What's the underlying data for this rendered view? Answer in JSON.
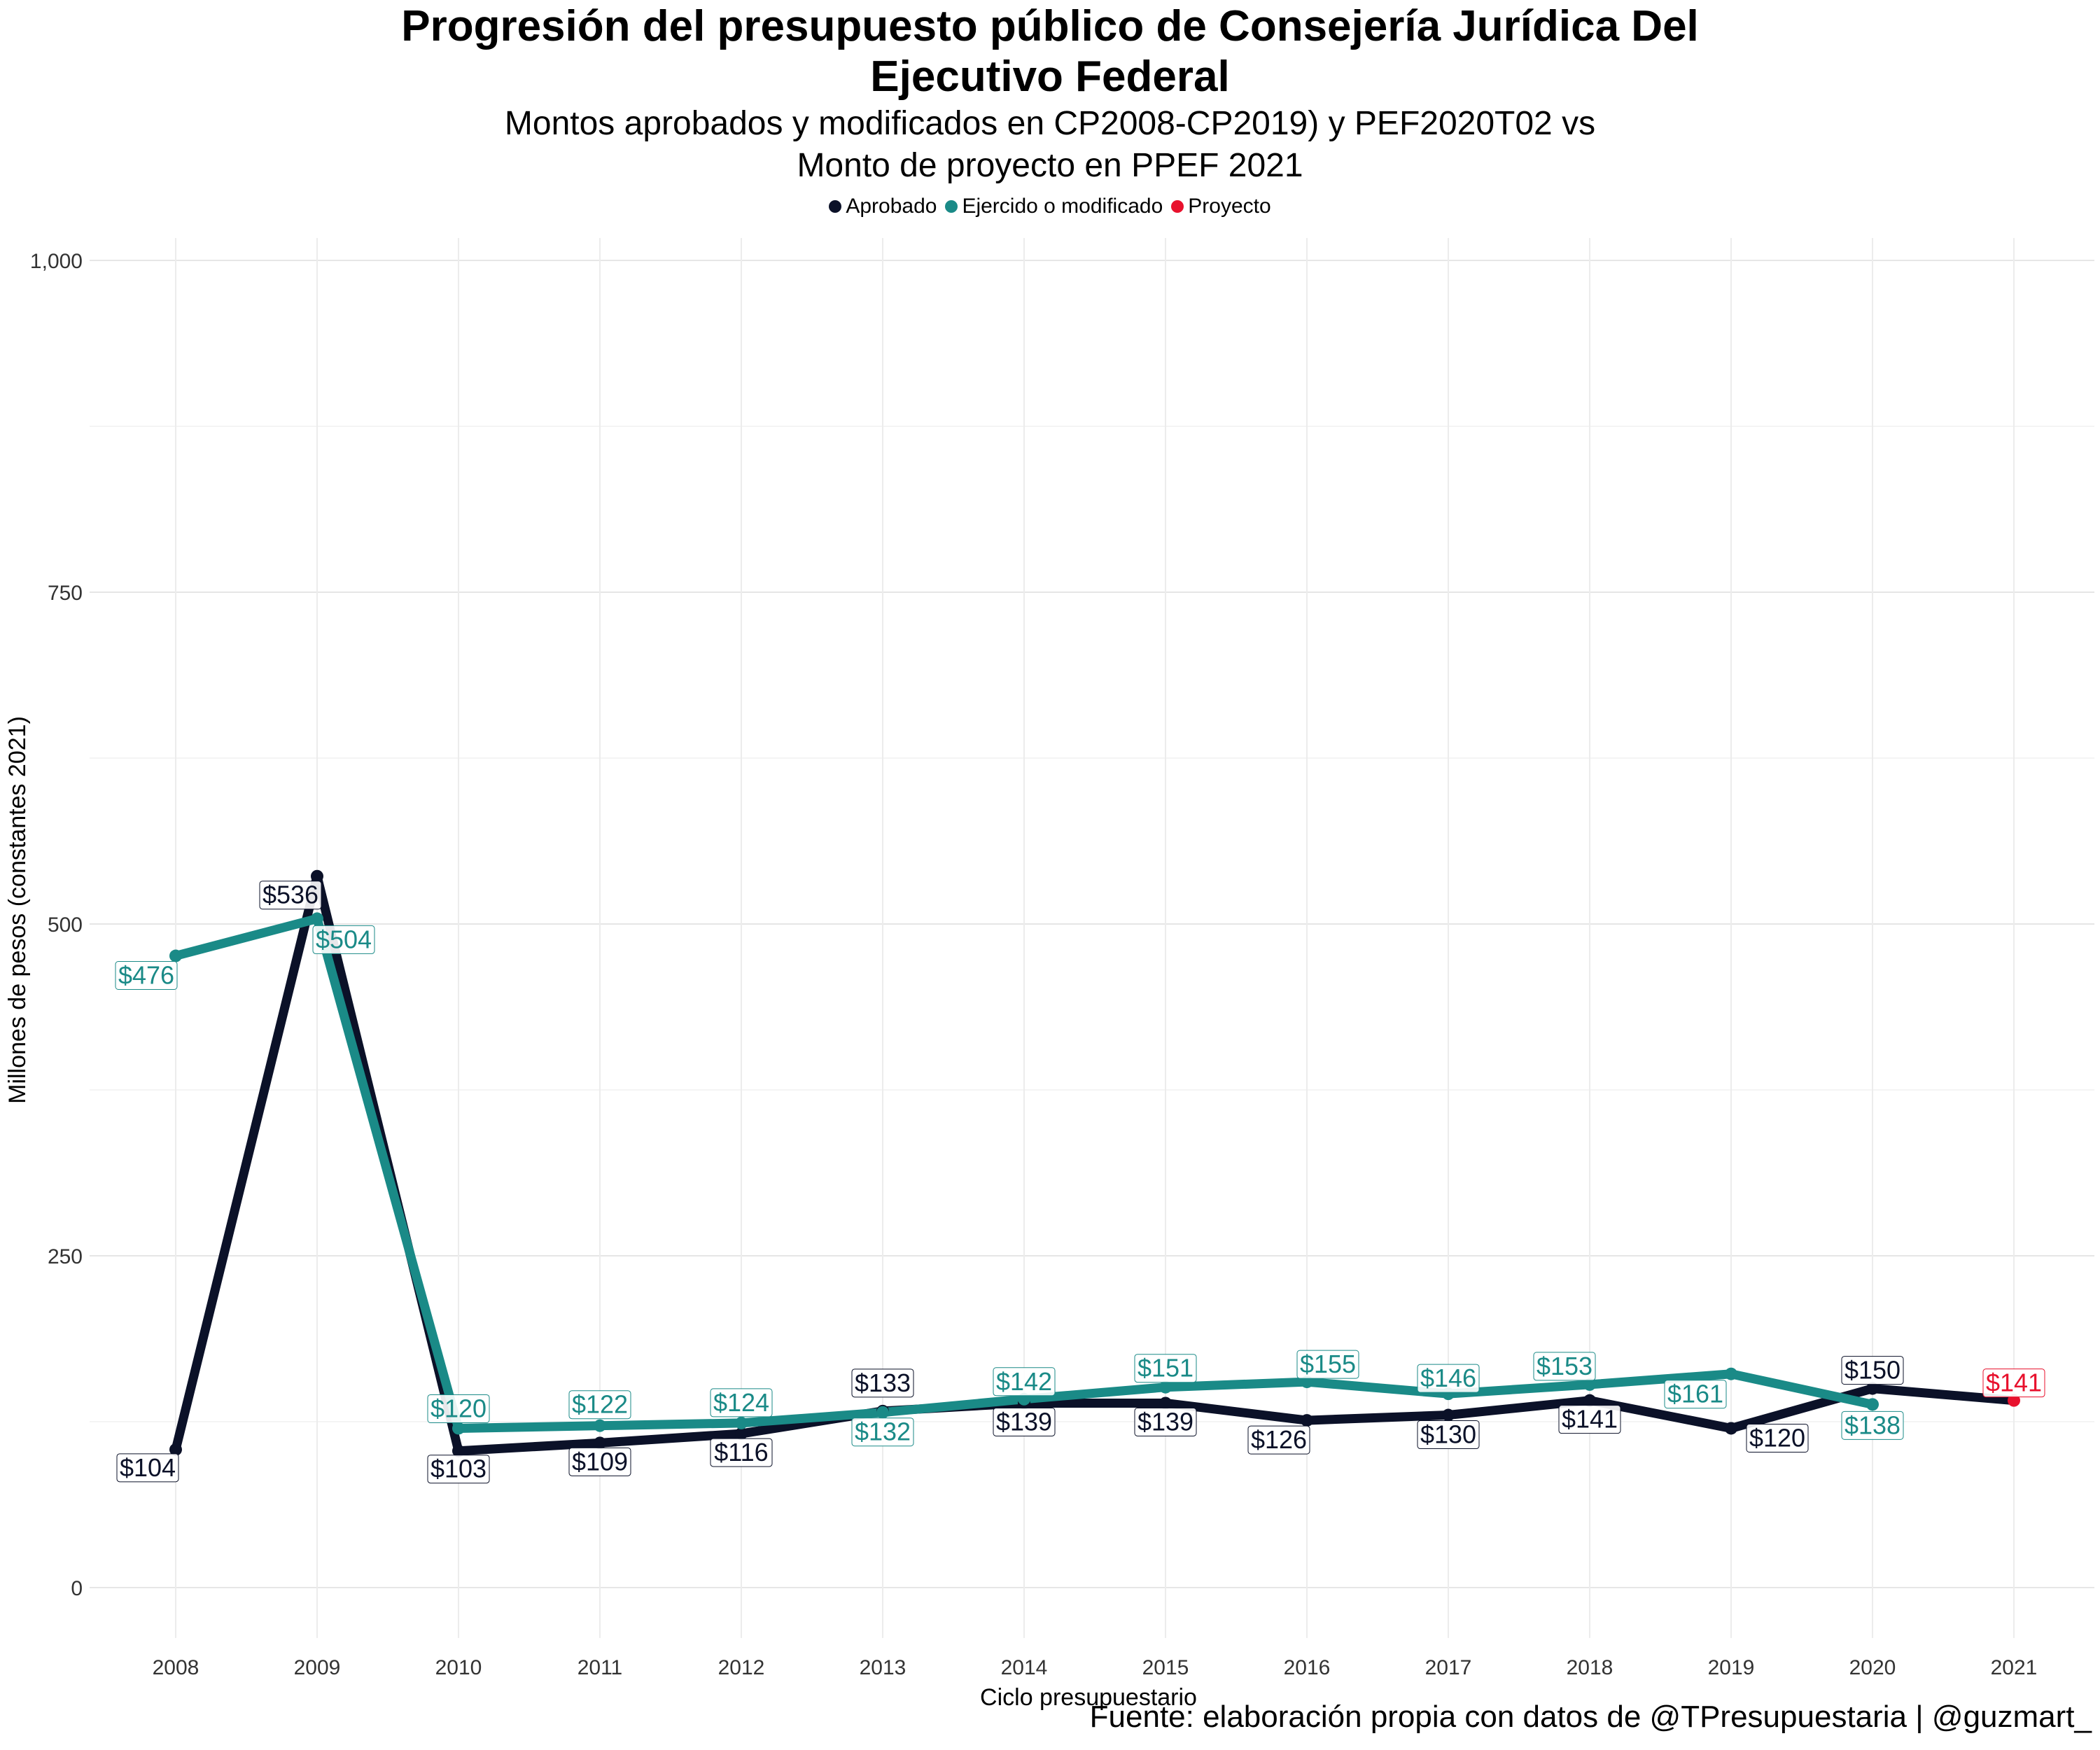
{
  "title_line1": "Progresión del presupuesto público de Consejería Jurídica Del",
  "title_line2": "Ejecutivo Federal",
  "subtitle_line1": "Montos aprobados y modificados en CP2008-CP2019) y PEF2020T02 vs",
  "subtitle_line2": "Monto de proyecto en PPEF 2021",
  "caption": "Fuente: elaboración propia con datos de @TPresupuestaria | @guzmart_",
  "colors": {
    "aprobado": "#0b1128",
    "ejercido": "#1a8a87",
    "proyecto": "#e8112d"
  },
  "chart_data": {
    "type": "line",
    "xlabel": "Ciclo presupuestario",
    "ylabel": "Millones de pesos (constantes 2021)",
    "ylim": [
      0,
      1000
    ],
    "yticks": [
      0,
      250,
      500,
      750,
      1000
    ],
    "ytick_labels": [
      "0",
      "250",
      "500",
      "750",
      "1,000"
    ],
    "grid": true,
    "legend_position": "top",
    "x": [
      "2008",
      "2009",
      "2010",
      "2011",
      "2012",
      "2013",
      "2014",
      "2015",
      "2016",
      "2017",
      "2018",
      "2019",
      "2020",
      "2021"
    ],
    "series": [
      {
        "name": "Aprobado",
        "color": "#0b1128",
        "values": [
          104,
          536,
          103,
          109,
          116,
          133,
          139,
          139,
          126,
          130,
          141,
          120,
          150,
          null
        ],
        "labels": [
          "$104",
          "$536",
          "$103",
          "$109",
          "$116",
          "$133",
          "$139",
          "$139",
          "$126",
          "$130",
          "$141",
          "$120",
          "$150",
          null
        ]
      },
      {
        "name": "Ejercido o modificado",
        "color": "#1a8a87",
        "values": [
          476,
          504,
          120,
          122,
          124,
          132,
          142,
          151,
          155,
          146,
          153,
          161,
          138,
          null
        ],
        "labels": [
          "$476",
          "$504",
          "$120",
          "$122",
          "$124",
          "$132",
          "$142",
          "$151",
          "$155",
          "$146",
          "$153",
          "$161",
          "$138",
          null
        ]
      },
      {
        "name": "Proyecto",
        "color": "#e8112d",
        "values": [
          null,
          null,
          null,
          null,
          null,
          null,
          null,
          null,
          null,
          null,
          null,
          null,
          null,
          141
        ],
        "labels": [
          null,
          null,
          null,
          null,
          null,
          null,
          null,
          null,
          null,
          null,
          null,
          null,
          null,
          "$141"
        ]
      }
    ]
  }
}
